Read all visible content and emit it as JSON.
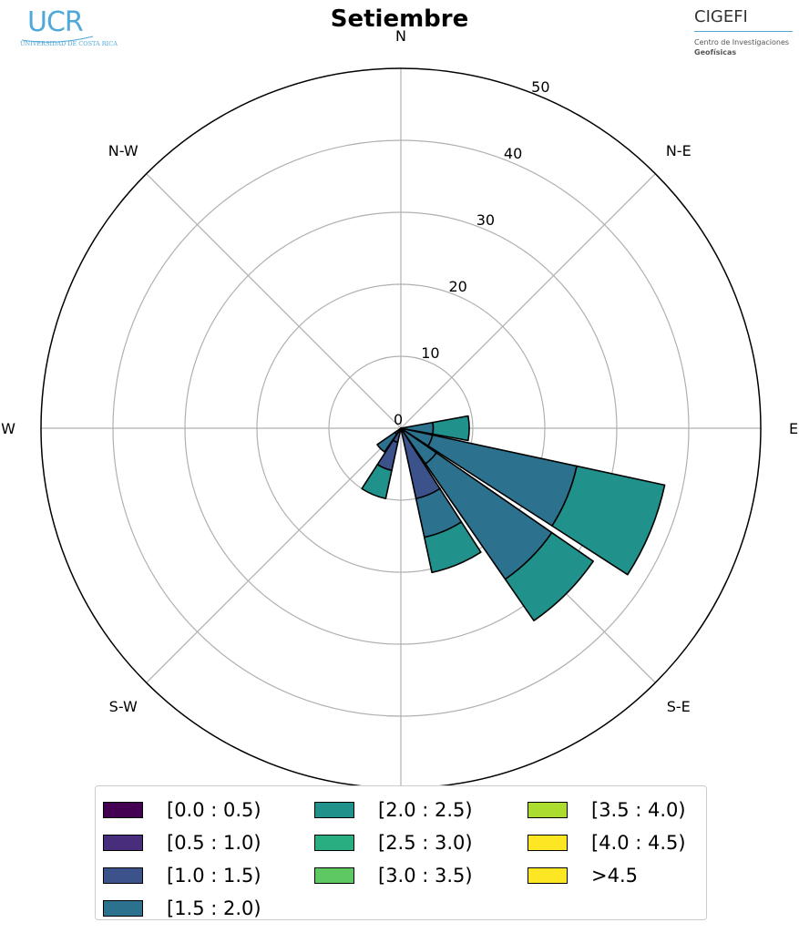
{
  "header": {
    "logo_left": {
      "name": "UCR",
      "subtitle": "UNIVERSIDAD DE COSTA RICA"
    },
    "logo_right": {
      "name": "CIGEFI",
      "line1": "Centro de Investigaciones",
      "line2": "Geofísicas"
    }
  },
  "chart_data": {
    "type": "windrose",
    "title": "Setiembre",
    "direction_labels": [
      "N",
      "N-E",
      "E",
      "S-E",
      "S",
      "S-W",
      "W",
      "N-W"
    ],
    "radial_ticks": [
      0,
      10,
      20,
      30,
      40,
      50
    ],
    "r_max": 50,
    "grid": true,
    "legend_position": "bottom",
    "bins": [
      {
        "label": "[0.0 : 0.5)",
        "color": "#440154"
      },
      {
        "label": "[0.5 : 1.0)",
        "color": "#472d7b"
      },
      {
        "label": "[1.0 : 1.5)",
        "color": "#3b528b"
      },
      {
        "label": "[1.5 : 2.0)",
        "color": "#2c728e"
      },
      {
        "label": "[2.0 : 2.5)",
        "color": "#21918c"
      },
      {
        "label": "[2.5 : 3.0)",
        "color": "#28ae80"
      },
      {
        "label": "[3.0 : 3.5)",
        "color": "#5ec962"
      },
      {
        "label": "[3.5 : 4.0)",
        "color": "#addc30"
      },
      {
        "label": "[4.0 : 4.5)",
        "color": "#fde725"
      },
      {
        "label": ">4.5",
        "color": "#fde725"
      }
    ],
    "sectors": [
      {
        "direction_deg": 90,
        "cumulative_values": [
          4.5,
          9.5
        ]
      },
      {
        "direction_deg": 112.5,
        "cumulative_values": [
          4.5,
          25.0,
          37.5
        ]
      },
      {
        "direction_deg": 135,
        "cumulative_values": [
          6.0,
          25.5,
          32.5
        ]
      },
      {
        "direction_deg": 157.5,
        "cumulative_values": [
          10.0,
          15.5,
          20.5
        ]
      },
      {
        "direction_deg": 202.5,
        "cumulative_values": [
          2.0,
          6.0,
          10.0
        ]
      },
      {
        "direction_deg": 225,
        "cumulative_values": [
          1.0,
          4.0
        ]
      }
    ],
    "sector_layer_colors": [
      [
        "#2c728e",
        "#21918c"
      ],
      [
        "#2c728e",
        "#2c728e",
        "#21918c"
      ],
      [
        "#2c728e",
        "#2c728e",
        "#21918c"
      ],
      [
        "#3b528b",
        "#2c728e",
        "#21918c"
      ],
      [
        "#3b528b",
        "#3b528b",
        "#21918c"
      ],
      [
        "#3b528b",
        "#2c728e"
      ]
    ]
  }
}
